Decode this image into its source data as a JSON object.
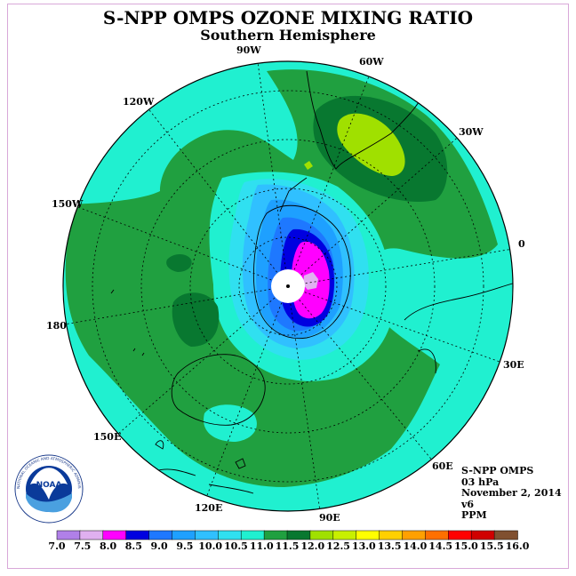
{
  "title": "S-NPP OMPS OZONE MIXING RATIO",
  "subtitle": "Southern Hemisphere",
  "longitude_labels": [
    "90W",
    "60W",
    "120W",
    "30W",
    "150W",
    "0",
    "180",
    "30E",
    "150E",
    "60E",
    "120E",
    "90E"
  ],
  "info": {
    "instrument": "S-NPP OMPS",
    "level": "03 hPa",
    "date": "November 2, 2014",
    "version": "v6",
    "units": "PPM"
  },
  "logo_text": "NOAA",
  "logo_ring_text": "NATIONAL OCEANIC AND ATMOSPHERIC ADMINISTRATION · U.S. DEPARTMENT OF COMMERCE",
  "colorbar": {
    "labels": [
      "7.0",
      "7.5",
      "8.0",
      "8.5",
      "9.0",
      "9.5",
      "10.0",
      "10.5",
      "11.0",
      "11.5",
      "12.0",
      "12.5",
      "13.0",
      "13.5",
      "14.0",
      "14.5",
      "15.0",
      "15.5",
      "16.0"
    ],
    "colors": [
      "#b080e8",
      "#e0b0f0",
      "#ff00ff",
      "#0000e0",
      "#1e78ff",
      "#1ea0ff",
      "#30c0ff",
      "#30e0f0",
      "#20f0d0",
      "#20a040",
      "#087830",
      "#a0e000",
      "#c8f000",
      "#ffff00",
      "#ffd000",
      "#ffa000",
      "#ff7000",
      "#ff0000",
      "#d00000",
      "#805030"
    ]
  },
  "colors": {
    "ocean_bg": "#20f0d0",
    "green_mid": "#20a040",
    "green_dark": "#087830",
    "lime": "#a0e000"
  }
}
